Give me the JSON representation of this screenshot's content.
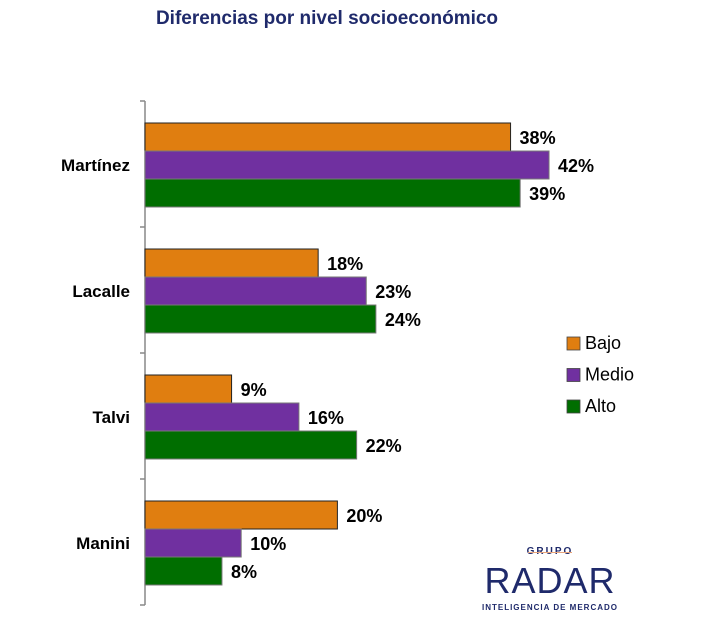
{
  "chart_data": {
    "type": "bar",
    "orientation": "horizontal",
    "title": "Diferencias por nivel socioeconómico",
    "categories": [
      "Martínez",
      "Lacalle",
      "Talvi",
      "Manini"
    ],
    "series": [
      {
        "name": "Bajo",
        "color": "#e07e10",
        "values": [
          38,
          18,
          9,
          20
        ]
      },
      {
        "name": "Medio",
        "color": "#7030a0",
        "values": [
          42,
          23,
          16,
          10
        ]
      },
      {
        "name": "Alto",
        "color": "#006e00",
        "values": [
          39,
          24,
          22,
          8
        ]
      }
    ],
    "value_suffix": "%",
    "xlim": [
      0,
      50
    ],
    "legend": "right"
  },
  "logo": {
    "top": "GRUPO",
    "name": "RADAR",
    "tagline": "INTELIGENCIA DE MERCADO"
  }
}
